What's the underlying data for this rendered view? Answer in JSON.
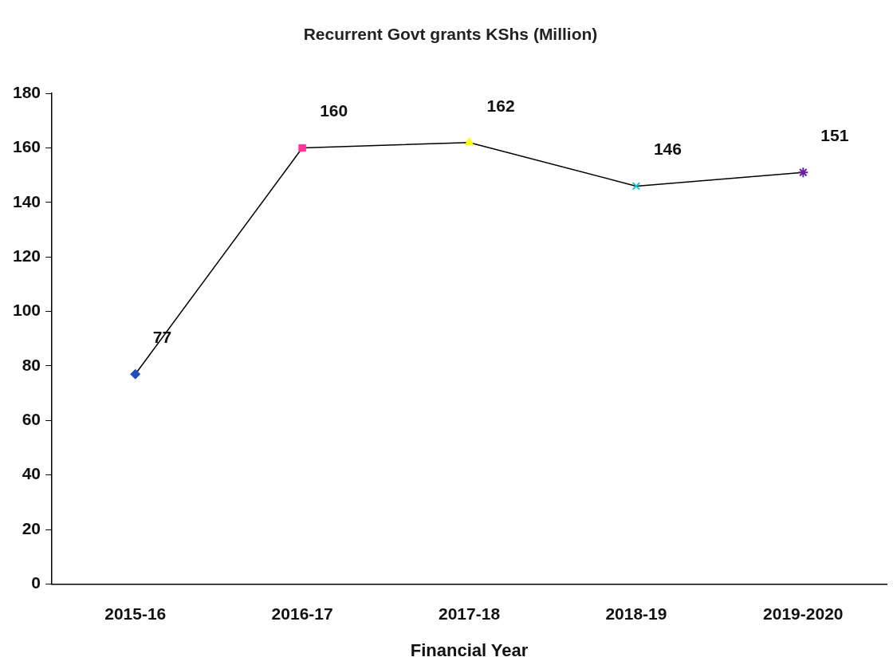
{
  "chart_data": {
    "type": "line",
    "title": "Recurrent Govt grants KShs (Million)",
    "xlabel": "Financial Year",
    "categories": [
      "2015-16",
      "2016-17",
      "2017-18",
      "2018-19",
      "2019-2020"
    ],
    "series": [
      {
        "color": "#000000",
        "colors": [
          "#1f4fbf",
          "#ff3399",
          "#ffff00",
          "#00c8d8",
          "#6a1fa0"
        ],
        "values": [
          77,
          160,
          162,
          146,
          151
        ]
      }
    ],
    "marker": [
      "diamond",
      "square",
      "triangle",
      "cross",
      "star"
    ],
    "ylim": [
      0,
      180
    ],
    "yticks": [
      0,
      20,
      40,
      60,
      80,
      100,
      120,
      140,
      160,
      180
    ],
    "grid": false,
    "legend": false,
    "data_labels": true
  }
}
